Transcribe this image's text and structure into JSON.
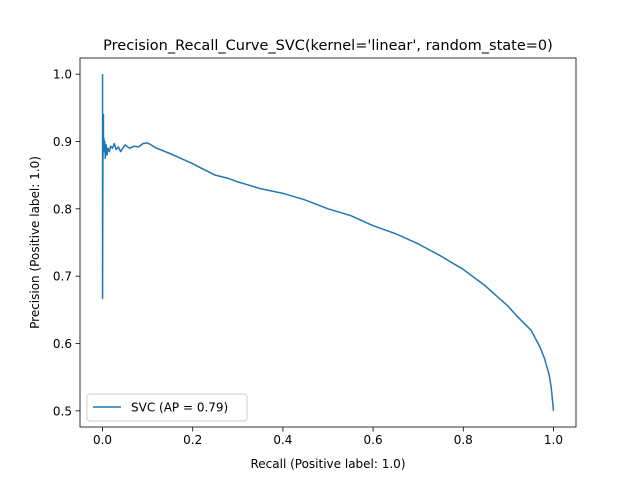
{
  "chart_data": {
    "type": "line",
    "title": "Precision_Recall_Curve_SVC(kernel='linear', random_state=0)",
    "xlabel": "Recall (Positive label: 1.0)",
    "ylabel": "Precision (Positive label: 1.0)",
    "xlim": [
      -0.05,
      1.05
    ],
    "ylim": [
      0.476,
      1.024
    ],
    "xticks": [
      {
        "value": 0.0,
        "label": "0.0"
      },
      {
        "value": 0.2,
        "label": "0.2"
      },
      {
        "value": 0.4,
        "label": "0.4"
      },
      {
        "value": 0.6,
        "label": "0.6"
      },
      {
        "value": 0.8,
        "label": "0.8"
      },
      {
        "value": 1.0,
        "label": "1.0"
      }
    ],
    "yticks": [
      {
        "value": 0.5,
        "label": "0.5"
      },
      {
        "value": 0.6,
        "label": "0.6"
      },
      {
        "value": 0.7,
        "label": "0.7"
      },
      {
        "value": 0.8,
        "label": "0.8"
      },
      {
        "value": 0.9,
        "label": "0.9"
      },
      {
        "value": 1.0,
        "label": "1.0"
      }
    ],
    "grid": false,
    "legend": {
      "placement": "lower-left",
      "entries": [
        "SVC (AP = 0.79)"
      ]
    },
    "series": [
      {
        "name": "SVC (AP = 0.79)",
        "color": "#1f77b4",
        "x": [
          0.0,
          0.0,
          0.001,
          0.001,
          0.002,
          0.002,
          0.003,
          0.004,
          0.005,
          0.006,
          0.008,
          0.01,
          0.012,
          0.015,
          0.018,
          0.022,
          0.026,
          0.03,
          0.035,
          0.04,
          0.05,
          0.06,
          0.07,
          0.08,
          0.09,
          0.1,
          0.12,
          0.15,
          0.18,
          0.2,
          0.22,
          0.25,
          0.28,
          0.3,
          0.35,
          0.4,
          0.45,
          0.5,
          0.55,
          0.6,
          0.65,
          0.7,
          0.75,
          0.8,
          0.85,
          0.88,
          0.9,
          0.92,
          0.95,
          0.97,
          0.98,
          0.99,
          0.995,
          0.998,
          1.0
        ],
        "y": [
          1.0,
          0.667,
          0.92,
          0.875,
          0.94,
          0.89,
          0.905,
          0.885,
          0.9,
          0.875,
          0.895,
          0.88,
          0.89,
          0.885,
          0.893,
          0.89,
          0.897,
          0.888,
          0.892,
          0.885,
          0.895,
          0.89,
          0.893,
          0.892,
          0.897,
          0.898,
          0.89,
          0.882,
          0.873,
          0.867,
          0.86,
          0.85,
          0.845,
          0.84,
          0.83,
          0.823,
          0.813,
          0.8,
          0.79,
          0.775,
          0.763,
          0.748,
          0.73,
          0.71,
          0.685,
          0.667,
          0.655,
          0.64,
          0.62,
          0.595,
          0.578,
          0.555,
          0.535,
          0.515,
          0.5
        ]
      }
    ]
  }
}
